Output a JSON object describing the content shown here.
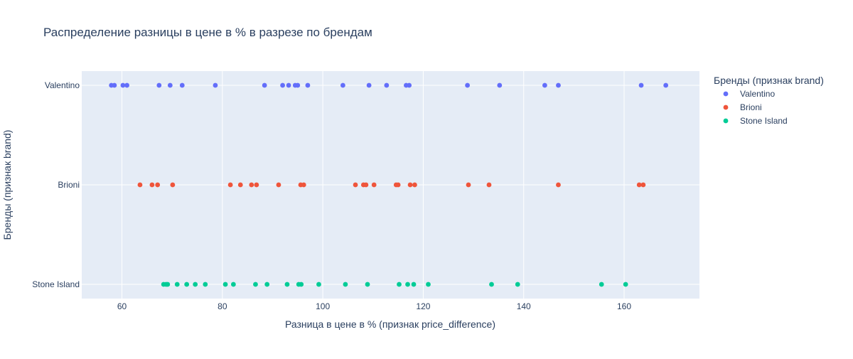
{
  "chart_data": {
    "type": "scatter",
    "title": "Распределение разницы в цене в % в разрезе по брендам",
    "xlabel": "Разница в цене в % (признак price_difference)",
    "ylabel": "Бренды (признак brand)",
    "xlim": [
      52,
      175
    ],
    "x_ticks": [
      60,
      80,
      100,
      120,
      140,
      160
    ],
    "categories": [
      "Valentino",
      "Brioni",
      "Stone Island"
    ],
    "grid": true,
    "legend": {
      "title": "Бренды (признак brand)",
      "placement": "right"
    },
    "series": [
      {
        "name": "Valentino",
        "color": "#636efa",
        "x": [
          57.9,
          58.5,
          60.2,
          61.0,
          67.4,
          69.6,
          72.0,
          78.6,
          88.4,
          92.0,
          93.2,
          94.5,
          95.0,
          97.0,
          104.0,
          109.2,
          112.7,
          116.6,
          117.2,
          128.8,
          135.2,
          144.2,
          146.9,
          163.4,
          168.3
        ]
      },
      {
        "name": "Brioni",
        "color": "#ef553b",
        "x": [
          63.6,
          66.0,
          67.1,
          70.1,
          81.6,
          83.6,
          85.8,
          86.8,
          91.2,
          95.6,
          96.2,
          106.5,
          108.1,
          108.6,
          110.2,
          114.6,
          115.0,
          117.4,
          118.3,
          129.0,
          133.1,
          146.9,
          163.0,
          163.8
        ]
      },
      {
        "name": "Stone Island",
        "color": "#00cc96",
        "x": [
          68.3,
          68.8,
          69.1,
          71.0,
          72.9,
          74.6,
          76.6,
          80.6,
          82.2,
          86.6,
          88.9,
          92.9,
          95.2,
          95.7,
          99.2,
          104.5,
          108.9,
          115.2,
          116.9,
          118.1,
          121.0,
          133.6,
          138.8,
          155.5,
          160.3
        ]
      }
    ]
  }
}
